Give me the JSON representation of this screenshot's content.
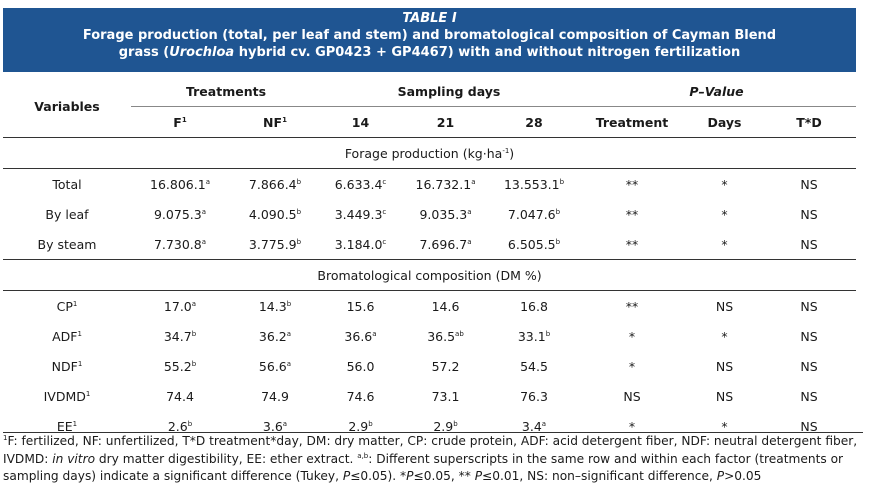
{
  "title": {
    "label": "TABLE I",
    "line2": "Forage production (total, per leaf and stem) and bromatological composition of Cayman Blend",
    "line3_pre": "grass (",
    "line3_italic": "Urochloa",
    "line3_post": " hybrid cv. GP0423 + GP4467) with and without nitrogen fertilization"
  },
  "header": {
    "variables": "Variables",
    "treatments": "Treatments",
    "sampling_days": "Sampling days",
    "pvalue": "P–Value",
    "f": "F",
    "f_sup": "1",
    "nf": "NF",
    "nf_sup": "1",
    "d14": "14",
    "d21": "21",
    "d28": "28",
    "treatment": "Treatment",
    "days": "Days",
    "td": "T*D"
  },
  "sections": [
    {
      "title": "Forage production (kg·ha",
      "title_sup": "-1",
      "title_end": ")",
      "rows": [
        {
          "name": "Total",
          "sup": "",
          "cells": [
            [
              "16.806.1",
              "a"
            ],
            [
              "7.866.4",
              "b"
            ],
            [
              "6.633.4",
              "c"
            ],
            [
              "16.732.1",
              "a"
            ],
            [
              "13.553.1",
              "b"
            ]
          ],
          "p": [
            "**",
            "*",
            "NS"
          ]
        },
        {
          "name": "By leaf",
          "sup": "",
          "cells": [
            [
              "9.075.3",
              "a"
            ],
            [
              "4.090.5",
              "b"
            ],
            [
              "3.449.3",
              "c"
            ],
            [
              "9.035.3",
              "a"
            ],
            [
              "7.047.6",
              "b"
            ]
          ],
          "p": [
            "**",
            "*",
            "NS"
          ]
        },
        {
          "name": "By steam",
          "sup": "",
          "cells": [
            [
              "7.730.8",
              "a"
            ],
            [
              "3.775.9",
              "b"
            ],
            [
              "3.184.0",
              "c"
            ],
            [
              "7.696.7",
              "a"
            ],
            [
              "6.505.5",
              "b"
            ]
          ],
          "p": [
            "**",
            "*",
            "NS"
          ]
        }
      ]
    },
    {
      "title": "Bromatological composition (DM %)",
      "title_sup": "",
      "title_end": "",
      "rows": [
        {
          "name": "CP",
          "sup": "1",
          "cells": [
            [
              "17.0",
              "a"
            ],
            [
              "14.3",
              "b"
            ],
            [
              "15.6",
              ""
            ],
            [
              "14.6",
              ""
            ],
            [
              "16.8",
              ""
            ]
          ],
          "p": [
            "**",
            "NS",
            "NS"
          ]
        },
        {
          "name": "ADF",
          "sup": "1",
          "cells": [
            [
              "34.7",
              "b"
            ],
            [
              "36.2",
              "a"
            ],
            [
              "36.6",
              "a"
            ],
            [
              "36.5",
              "ab"
            ],
            [
              "33.1",
              "b"
            ]
          ],
          "p": [
            "*",
            "*",
            "NS"
          ]
        },
        {
          "name": "NDF",
          "sup": "1",
          "cells": [
            [
              "55.2",
              "b"
            ],
            [
              "56.6",
              "a"
            ],
            [
              "56.0",
              ""
            ],
            [
              "57.2",
              ""
            ],
            [
              "54.5",
              ""
            ]
          ],
          "p": [
            "*",
            "NS",
            "NS"
          ]
        },
        {
          "name": "IVDMD",
          "sup": "1",
          "cells": [
            [
              "74.4",
              ""
            ],
            [
              "74.9",
              ""
            ],
            [
              "74.6",
              ""
            ],
            [
              "73.1",
              ""
            ],
            [
              "76.3",
              ""
            ]
          ],
          "p": [
            "NS",
            "NS",
            "NS"
          ]
        },
        {
          "name": "EE",
          "sup": "1",
          "cells": [
            [
              "2.6",
              "b"
            ],
            [
              "3.6",
              "a"
            ],
            [
              "2.9",
              "b"
            ],
            [
              "2.9",
              "b"
            ],
            [
              "3.4",
              "a"
            ]
          ],
          "p": [
            "*",
            "*",
            "NS"
          ]
        }
      ]
    }
  ],
  "footnote": {
    "s1_sup": "1",
    "s1": "F: fertilized, NF: unfertilized, T*D treatment*day, DM: dry matter, CP: crude protein, ADF: acid detergent fiber, NDF: neutral detergent fiber, IVDMD: ",
    "s2_italic": "in vitro",
    "s3": " dry matter digestibility, EE: ether extract. ",
    "s4_sup": "a,b",
    "s5": ": Different superscripts in the same row and within each factor (treatments or sampling days) indicate a significant difference (Tukey, ",
    "s6_italic": "P",
    "s7": "≤0.05). *",
    "s8_italic": "P",
    "s9": "≤0.05, ** ",
    "s10_italic": "P",
    "s11": "≤0.01, NS: non–significant difference, ",
    "s12_italic": "P",
    "s13": ">0.05"
  },
  "colors": {
    "title_bg": "#1f5592",
    "title_text": "#ffffff"
  }
}
